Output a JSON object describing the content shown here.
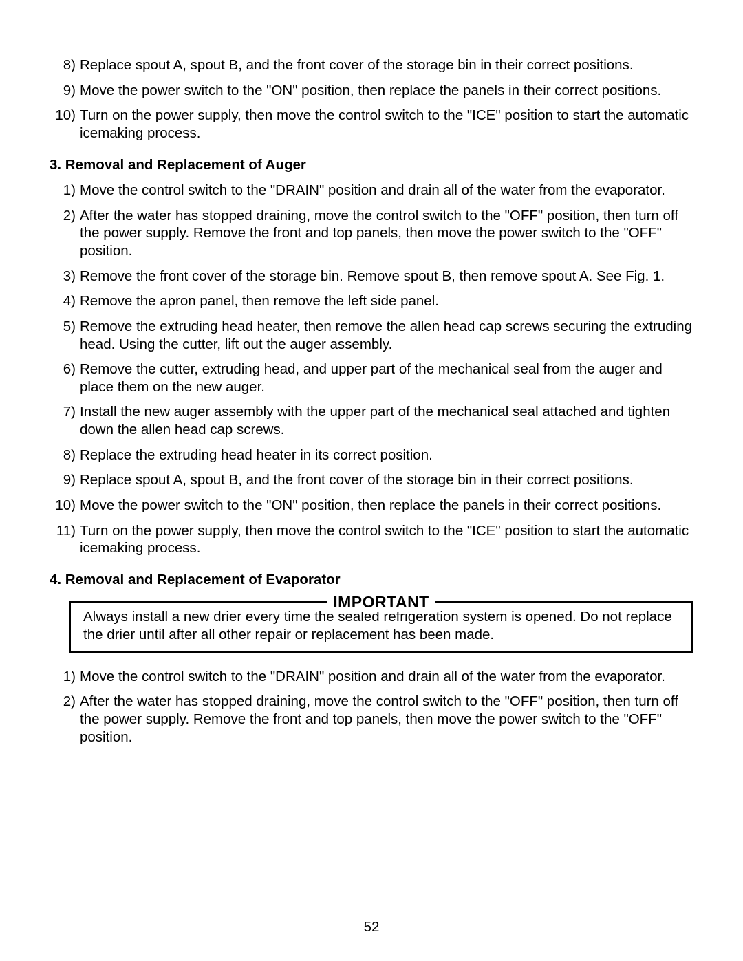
{
  "page_number": "52",
  "intro_steps": [
    {
      "n": "8)",
      "t": "Replace spout A, spout B, and the front cover of the storage bin in their correct positions."
    },
    {
      "n": "9)",
      "t": "Move the power switch to the \"ON\" position, then replace the panels in their correct positions."
    },
    {
      "n": "10)",
      "t": "Turn on the power supply, then move the control switch to the \"ICE\" position to start the automatic icemaking process."
    }
  ],
  "section3": {
    "heading": "3. Removal and Replacement of Auger",
    "steps": [
      {
        "n": "1)",
        "t": "Move the control switch to the \"DRAIN\" position and drain all of the water from the evaporator."
      },
      {
        "n": "2)",
        "t": "After the water has stopped draining, move the control switch to the \"OFF\" position, then turn off the power supply. Remove the front and top panels, then move the power switch to the \"OFF\" position."
      },
      {
        "n": "3)",
        "t": "Remove the front cover of the storage bin. Remove spout B, then remove spout A. See Fig. 1."
      },
      {
        "n": "4)",
        "t": "Remove the apron panel, then remove the left side panel."
      },
      {
        "n": "5)",
        "t": "Remove the extruding head heater, then remove the allen head cap screws securing the extruding head. Using the cutter, lift out the auger assembly."
      },
      {
        "n": "6)",
        "t": "Remove the cutter, extruding head, and upper part of the mechanical seal from the auger and place them on the new auger."
      },
      {
        "n": "7)",
        "t": "Install the new auger assembly with the upper part of the mechanical seal attached and tighten down the allen head cap screws."
      },
      {
        "n": "8)",
        "t": "Replace the extruding head heater in its correct position."
      },
      {
        "n": "9)",
        "t": "Replace spout A, spout B, and the front cover of the storage bin in their correct positions."
      },
      {
        "n": "10)",
        "t": "Move the power switch to the \"ON\" position, then replace the panels in their correct positions."
      },
      {
        "n": "11)",
        "t": "Turn on the power supply, then move the control switch to the \"ICE\" position to start the automatic icemaking process."
      }
    ]
  },
  "section4": {
    "heading": "4. Removal and Replacement of Evaporator",
    "important_label": "IMPORTANT",
    "important_text": "Always install a new drier every time the sealed refrigeration system is opened. Do not replace the drier until after all other repair or replacement has been made.",
    "steps": [
      {
        "n": "1)",
        "t": "Move the control switch to the \"DRAIN\" position and drain all of the water from the evaporator."
      },
      {
        "n": "2)",
        "t": "After the water has stopped draining, move the control switch to the \"OFF\" position, then turn off the power supply. Remove the front and top panels, then move the power switch to the \"OFF\" position."
      }
    ]
  }
}
